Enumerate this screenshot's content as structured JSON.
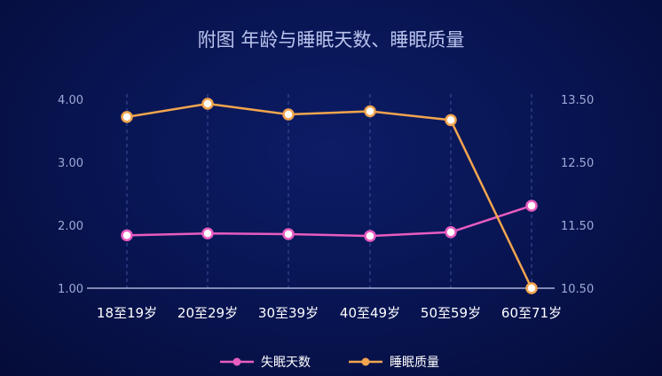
{
  "chart_data": {
    "type": "line",
    "title": "附图 年龄与睡眠天数、睡眠质量",
    "categories": [
      "18至19岁",
      "20至29岁",
      "30至39岁",
      "40至49岁",
      "50至59岁",
      "60至71岁"
    ],
    "y_left": {
      "ylim": [
        1.0,
        4.0
      ],
      "ticks": [
        "1.00",
        "2.00",
        "3.00",
        "4.00"
      ]
    },
    "y_right": {
      "ylim": [
        10.5,
        13.5
      ],
      "ticks": [
        "10.50",
        "11.50",
        "12.50",
        "13.50"
      ]
    },
    "grid": "vertical dashed",
    "legend_position": "bottom-center",
    "series": [
      {
        "name": "失眠天数",
        "axis": "left",
        "color": "#e85cc0",
        "values": [
          1.84,
          1.87,
          1.86,
          1.83,
          1.89,
          2.31
        ]
      },
      {
        "name": "睡眠质量",
        "axis": "right",
        "color": "#f2a54e",
        "values": [
          13.22,
          13.43,
          13.26,
          13.31,
          13.17,
          10.5
        ]
      }
    ]
  }
}
